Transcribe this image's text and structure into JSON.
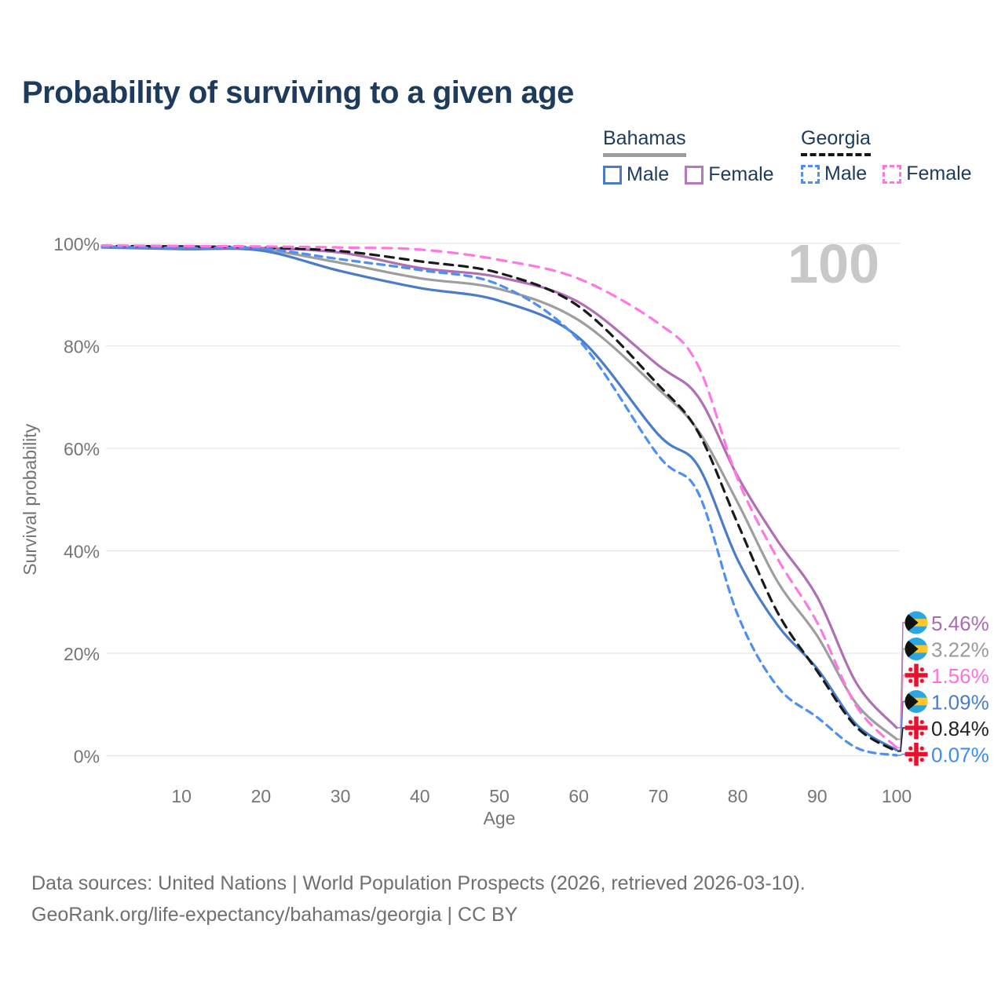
{
  "header": {
    "title": "Probability of surviving to a given age"
  },
  "legend": {
    "groups": [
      {
        "label": "Bahamas",
        "line_style": "solid",
        "underline_color": "#9e9e9e",
        "items": [
          {
            "label": "Male",
            "color": "#4a7cc7"
          },
          {
            "label": "Female",
            "color": "#b678bc"
          }
        ]
      },
      {
        "label": "Georgia",
        "line_style": "dashed",
        "underline_color": "#161616",
        "items": [
          {
            "label": "Male",
            "color": "#4d8ff2"
          },
          {
            "label": "Female",
            "color": "#ff77e2"
          }
        ]
      }
    ]
  },
  "chart_data": {
    "type": "line",
    "title": "Probability of surviving to a given age",
    "xlabel": "Age",
    "ylabel": "Survival probability",
    "xlim": [
      0,
      100
    ],
    "ylim": [
      0,
      100
    ],
    "x_ticks": [
      10,
      20,
      30,
      40,
      50,
      60,
      70,
      80,
      90,
      100
    ],
    "y_ticks": [
      0,
      20,
      40,
      60,
      80,
      100
    ],
    "y_tick_suffix": "%",
    "grid": "horizontal",
    "legend_position": "top-right",
    "watermark": "100",
    "x": [
      0,
      10,
      20,
      30,
      40,
      50,
      60,
      70,
      75,
      80,
      85,
      90,
      95,
      100
    ],
    "series": [
      {
        "name": "Bahamas (both sexes)",
        "slug": "bahamas-total",
        "country": "Bahamas",
        "sex": "Both",
        "color": "#9e9e9e",
        "dash": "solid",
        "values": [
          99.3,
          99.0,
          98.8,
          96.2,
          93.2,
          91.1,
          85.0,
          71.6,
          63.5,
          49.4,
          34.0,
          23.4,
          10.0,
          3.22
        ],
        "end_label": "3.22%"
      },
      {
        "name": "Bahamas Male",
        "slug": "bahamas-male",
        "country": "Bahamas",
        "sex": "Male",
        "color": "#4a7cc7",
        "dash": "solid",
        "values": [
          99.2,
          98.9,
          98.6,
          94.6,
          91.3,
          88.8,
          81.6,
          62.7,
          56.6,
          38.2,
          25.5,
          17.0,
          6.0,
          1.09
        ],
        "end_label": "1.09%"
      },
      {
        "name": "Bahamas Female",
        "slug": "bahamas-female",
        "country": "Bahamas",
        "sex": "Female",
        "color": "#b06fb5",
        "dash": "solid",
        "values": [
          99.4,
          99.2,
          99.1,
          98.2,
          95.2,
          93.4,
          88.5,
          76.2,
          70.1,
          54.5,
          42.0,
          31.0,
          14.0,
          5.46
        ],
        "end_label": "5.46%"
      },
      {
        "name": "Georgia (both sexes)",
        "slug": "georgia-total",
        "country": "Georgia",
        "sex": "Both",
        "color": "#1a1a1a",
        "dash": "dashed",
        "values": [
          99.5,
          99.4,
          99.2,
          98.5,
          96.5,
          94.2,
          87.7,
          72.4,
          63.2,
          45.3,
          28.0,
          16.5,
          5.5,
          0.84
        ],
        "end_label": "0.84%"
      },
      {
        "name": "Georgia Male",
        "slug": "georgia-male",
        "country": "Georgia",
        "sex": "Male",
        "color": "#4d8ff2",
        "dash": "dashed",
        "values": [
          99.3,
          99.1,
          99.0,
          96.9,
          94.8,
          91.9,
          81.1,
          58.6,
          51.4,
          27.5,
          13.5,
          7.5,
          1.5,
          0.07
        ],
        "end_label": "0.07%"
      },
      {
        "name": "Georgia Female",
        "slug": "georgia-female",
        "country": "Georgia",
        "sex": "Female",
        "color": "#ff77e2",
        "dash": "dashed",
        "values": [
          99.6,
          99.5,
          99.4,
          99.2,
          98.8,
          96.8,
          93.1,
          84.4,
          76.2,
          54.0,
          38.5,
          26.0,
          9.5,
          1.56
        ],
        "end_label": "1.56%"
      }
    ],
    "end_labels": [
      {
        "text": "5.46%",
        "series": "bahamas-female",
        "flag": "bahamas",
        "color": "#a96cb3",
        "value": 5.46
      },
      {
        "text": "3.22%",
        "series": "bahamas-total",
        "flag": "bahamas",
        "color": "#9a9a9a",
        "value": 3.22
      },
      {
        "text": "1.56%",
        "series": "georgia-female",
        "flag": "georgia",
        "color": "#ff70dd",
        "value": 1.56
      },
      {
        "text": "1.09%",
        "series": "bahamas-male",
        "flag": "bahamas",
        "color": "#4a7cc7",
        "value": 1.09
      },
      {
        "text": "0.84%",
        "series": "georgia-total",
        "flag": "georgia",
        "color": "#222222",
        "value": 0.84
      },
      {
        "text": "0.07%",
        "series": "georgia-male",
        "flag": "georgia",
        "color": "#3d8bf2",
        "value": 0.07
      }
    ],
    "flag_colors": {
      "bahamas_aqua": "#2ba7df",
      "bahamas_gold": "#ffc72c",
      "bahamas_black": "#111111",
      "georgia_white": "#f2f2f2",
      "georgia_red": "#e8112d"
    },
    "style_colors": {
      "grid": "#e7e7e7",
      "axis_text": "#757575",
      "watermark": "#c8c8c8",
      "title": "#1e3b5c"
    }
  },
  "footer": {
    "line1": "Data sources: United Nations | World Population Prospects (2026, retrieved 2026-03-10).",
    "line2": "GeoRank.org/life-expectancy/bahamas/georgia | CC BY"
  }
}
